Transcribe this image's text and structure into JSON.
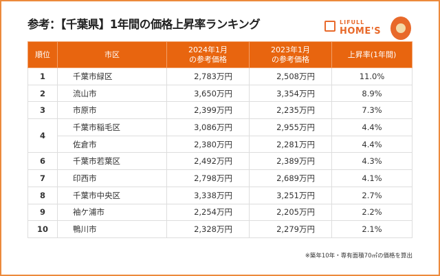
{
  "title": "参考：【千葉県】1年間の価格上昇率ランキング",
  "logo": {
    "line1": "LIFULL",
    "line2": "HOME'S",
    "color": "#e8692a"
  },
  "table": {
    "headers": {
      "rank": "順位",
      "area": "市区",
      "price2024_l1": "2024年1月",
      "price2024_l2": "の参考価格",
      "price2023_l1": "2023年1月",
      "price2023_l2": "の参考価格",
      "rate": "上昇率(1年間)"
    },
    "header_color": "#e8650f",
    "rows": [
      {
        "rank": "1",
        "area": "千葉市緑区",
        "p2024": "2,783万円",
        "p2023": "2,508万円",
        "rate": "11.0%"
      },
      {
        "rank": "2",
        "area": "流山市",
        "p2024": "3,650万円",
        "p2023": "3,354万円",
        "rate": "8.9%"
      },
      {
        "rank": "3",
        "area": "市原市",
        "p2024": "2,399万円",
        "p2023": "2,235万円",
        "rate": "7.3%"
      },
      {
        "rank": "4",
        "area": "千葉市稲毛区",
        "p2024": "3,086万円",
        "p2023": "2,955万円",
        "rate": "4.4%"
      },
      {
        "rank": "",
        "area": "佐倉市",
        "p2024": "2,380万円",
        "p2023": "2,281万円",
        "rate": "4.4%"
      },
      {
        "rank": "6",
        "area": "千葉市若葉区",
        "p2024": "2,492万円",
        "p2023": "2,389万円",
        "rate": "4.3%"
      },
      {
        "rank": "7",
        "area": "印西市",
        "p2024": "2,798万円",
        "p2023": "2,689万円",
        "rate": "4.1%"
      },
      {
        "rank": "8",
        "area": "千葉市中央区",
        "p2024": "3,338万円",
        "p2023": "3,251万円",
        "rate": "2.7%"
      },
      {
        "rank": "9",
        "area": "袖ケ浦市",
        "p2024": "2,254万円",
        "p2023": "2,205万円",
        "rate": "2.2%"
      },
      {
        "rank": "10",
        "area": "鴨川市",
        "p2024": "2,328万円",
        "p2023": "2,279万円",
        "rate": "2.1%"
      }
    ]
  },
  "note": "※築年10年・専有面積70㎡の価格を算出"
}
